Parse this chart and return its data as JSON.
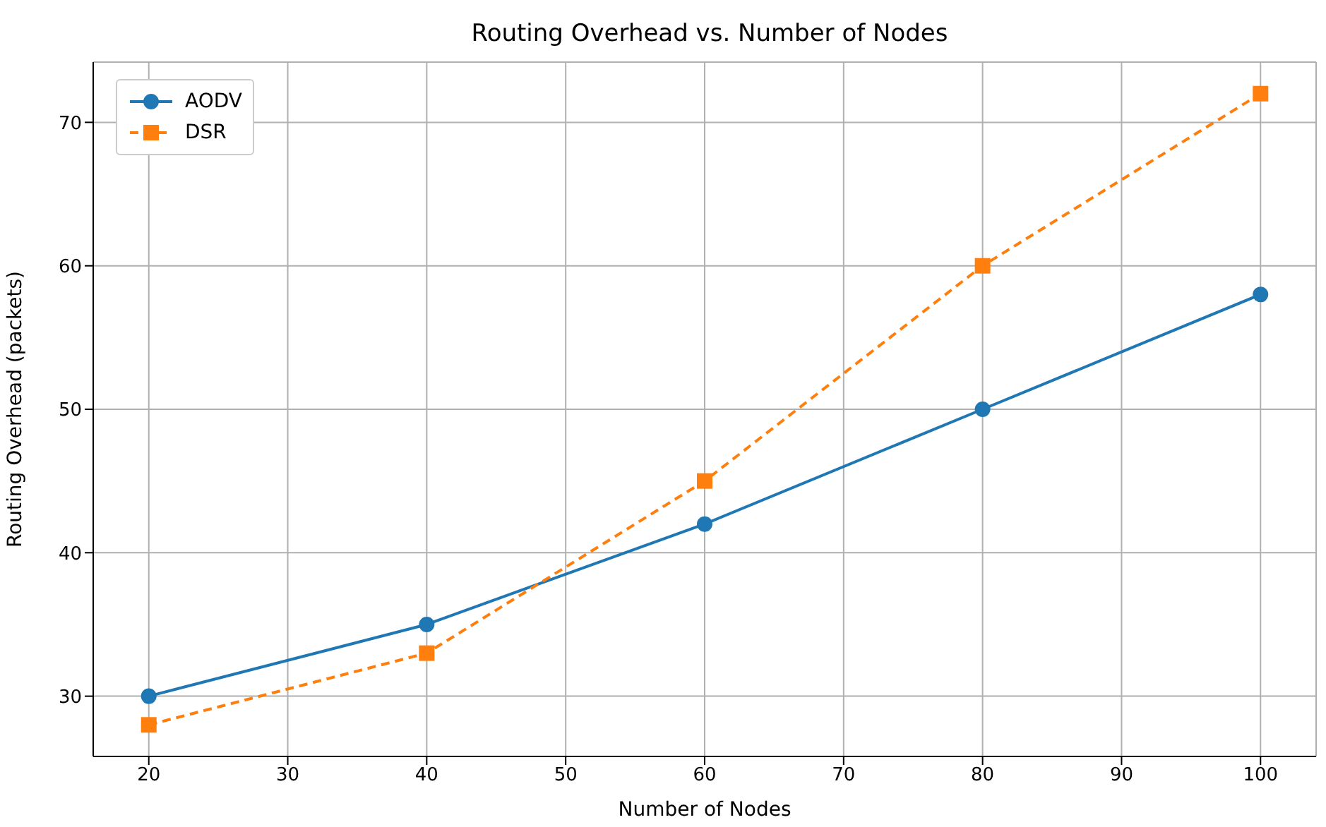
{
  "chart_data": {
    "type": "line",
    "title": "Routing Overhead vs. Number of Nodes",
    "xlabel": "Number of Nodes",
    "ylabel": "Routing Overhead (packets)",
    "x": [
      20,
      40,
      60,
      80,
      100
    ],
    "series": [
      {
        "name": "AODV",
        "color": "#1f77b4",
        "values": [
          30,
          35,
          42,
          50,
          58
        ],
        "marker": "circle",
        "line_style": "solid"
      },
      {
        "name": "DSR",
        "color": "#ff7f0e",
        "values": [
          28,
          33,
          45,
          60,
          72
        ],
        "marker": "square",
        "line_style": "dashed"
      }
    ],
    "xlim": [
      16,
      104
    ],
    "xticks": [
      20,
      30,
      40,
      50,
      60,
      70,
      80,
      90,
      100
    ],
    "ylim": [
      25.8,
      74.2
    ],
    "yticks": [
      30,
      40,
      50,
      60,
      70
    ],
    "grid": true,
    "legend": "top left"
  }
}
